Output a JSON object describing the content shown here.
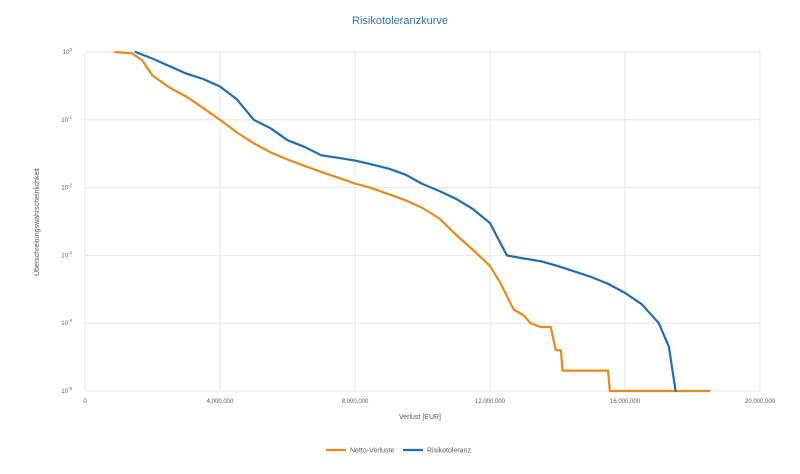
{
  "colors": {
    "netto": "#e8891c",
    "risiko": "#1f6db3"
  },
  "chart_data": {
    "type": "line",
    "title": "Risikotoleranzkurve",
    "xlabel": "Verlust [EUR]",
    "ylabel": "Überschreitungswahrscheinlichkeit",
    "xlim": [
      0,
      20000000
    ],
    "ylim": [
      1e-05,
      1
    ],
    "yscale": "log",
    "x_ticks": [
      0,
      4000000,
      8000000,
      12000000,
      16000000,
      20000000
    ],
    "x_tick_labels": [
      "0",
      "4,000,000",
      "8,000,000",
      "12,000,000",
      "16,000,000",
      "20,000,000"
    ],
    "y_ticks": [
      1,
      0.1,
      0.01,
      0.001,
      0.0001,
      1e-05
    ],
    "y_tick_base": [
      "10",
      "10",
      "10",
      "10",
      "10",
      "10"
    ],
    "y_tick_exp": [
      "0",
      "-1",
      "-2",
      "-3",
      "-4",
      "-5"
    ],
    "grid": true,
    "legend_position": "bottom",
    "series": [
      {
        "name": "Netto-Verluste",
        "color": "#e8891c",
        "points": [
          [
            900000,
            1.0
          ],
          [
            1400000,
            0.95
          ],
          [
            1700000,
            0.75
          ],
          [
            2000000,
            0.45
          ],
          [
            2500000,
            0.3
          ],
          [
            3000000,
            0.22
          ],
          [
            3500000,
            0.15
          ],
          [
            4000000,
            0.1
          ],
          [
            4500000,
            0.065
          ],
          [
            5000000,
            0.045
          ],
          [
            5500000,
            0.033
          ],
          [
            6000000,
            0.026
          ],
          [
            6500000,
            0.021
          ],
          [
            7000000,
            0.017
          ],
          [
            7500000,
            0.014
          ],
          [
            8000000,
            0.0115
          ],
          [
            8500000,
            0.0098
          ],
          [
            9000000,
            0.008
          ],
          [
            9500000,
            0.0065
          ],
          [
            10000000,
            0.005
          ],
          [
            10500000,
            0.0035
          ],
          [
            11000000,
            0.002
          ],
          [
            11500000,
            0.0012
          ],
          [
            12000000,
            0.0007
          ],
          [
            12300000,
            0.0004
          ],
          [
            12500000,
            0.00025
          ],
          [
            12700000,
            0.00016
          ],
          [
            13000000,
            0.00013
          ],
          [
            13200000,
            0.0001
          ],
          [
            13500000,
            8.8e-05
          ],
          [
            13800000,
            8.8e-05
          ],
          [
            13950000,
            4e-05
          ],
          [
            14100000,
            4e-05
          ],
          [
            14150000,
            2e-05
          ],
          [
            15500000,
            2e-05
          ],
          [
            15550000,
            1e-05
          ],
          [
            18500000,
            1e-05
          ]
        ]
      },
      {
        "name": "Risikotoleranz",
        "color": "#1f6db3",
        "points": [
          [
            1500000,
            1.0
          ],
          [
            2000000,
            0.8
          ],
          [
            2500000,
            0.62
          ],
          [
            3000000,
            0.48
          ],
          [
            3500000,
            0.4
          ],
          [
            4000000,
            0.31
          ],
          [
            4500000,
            0.2
          ],
          [
            5000000,
            0.1
          ],
          [
            5500000,
            0.075
          ],
          [
            6000000,
            0.05
          ],
          [
            6500000,
            0.04
          ],
          [
            7000000,
            0.03
          ],
          [
            7500000,
            0.0275
          ],
          [
            8000000,
            0.025
          ],
          [
            8500000,
            0.022
          ],
          [
            9000000,
            0.019
          ],
          [
            9500000,
            0.0155
          ],
          [
            10000000,
            0.0113
          ],
          [
            10500000,
            0.0089
          ],
          [
            11000000,
            0.0068
          ],
          [
            11500000,
            0.0048
          ],
          [
            12000000,
            0.003
          ],
          [
            12500000,
            0.001
          ],
          [
            13000000,
            0.0009
          ],
          [
            13500000,
            0.00082
          ],
          [
            14000000,
            0.0007
          ],
          [
            14500000,
            0.00058
          ],
          [
            15000000,
            0.00048
          ],
          [
            15500000,
            0.00038
          ],
          [
            16000000,
            0.00028
          ],
          [
            16500000,
            0.00019
          ],
          [
            17000000,
            0.0001
          ],
          [
            17300000,
            4.5e-05
          ],
          [
            17500000,
            1e-05
          ]
        ]
      }
    ]
  }
}
